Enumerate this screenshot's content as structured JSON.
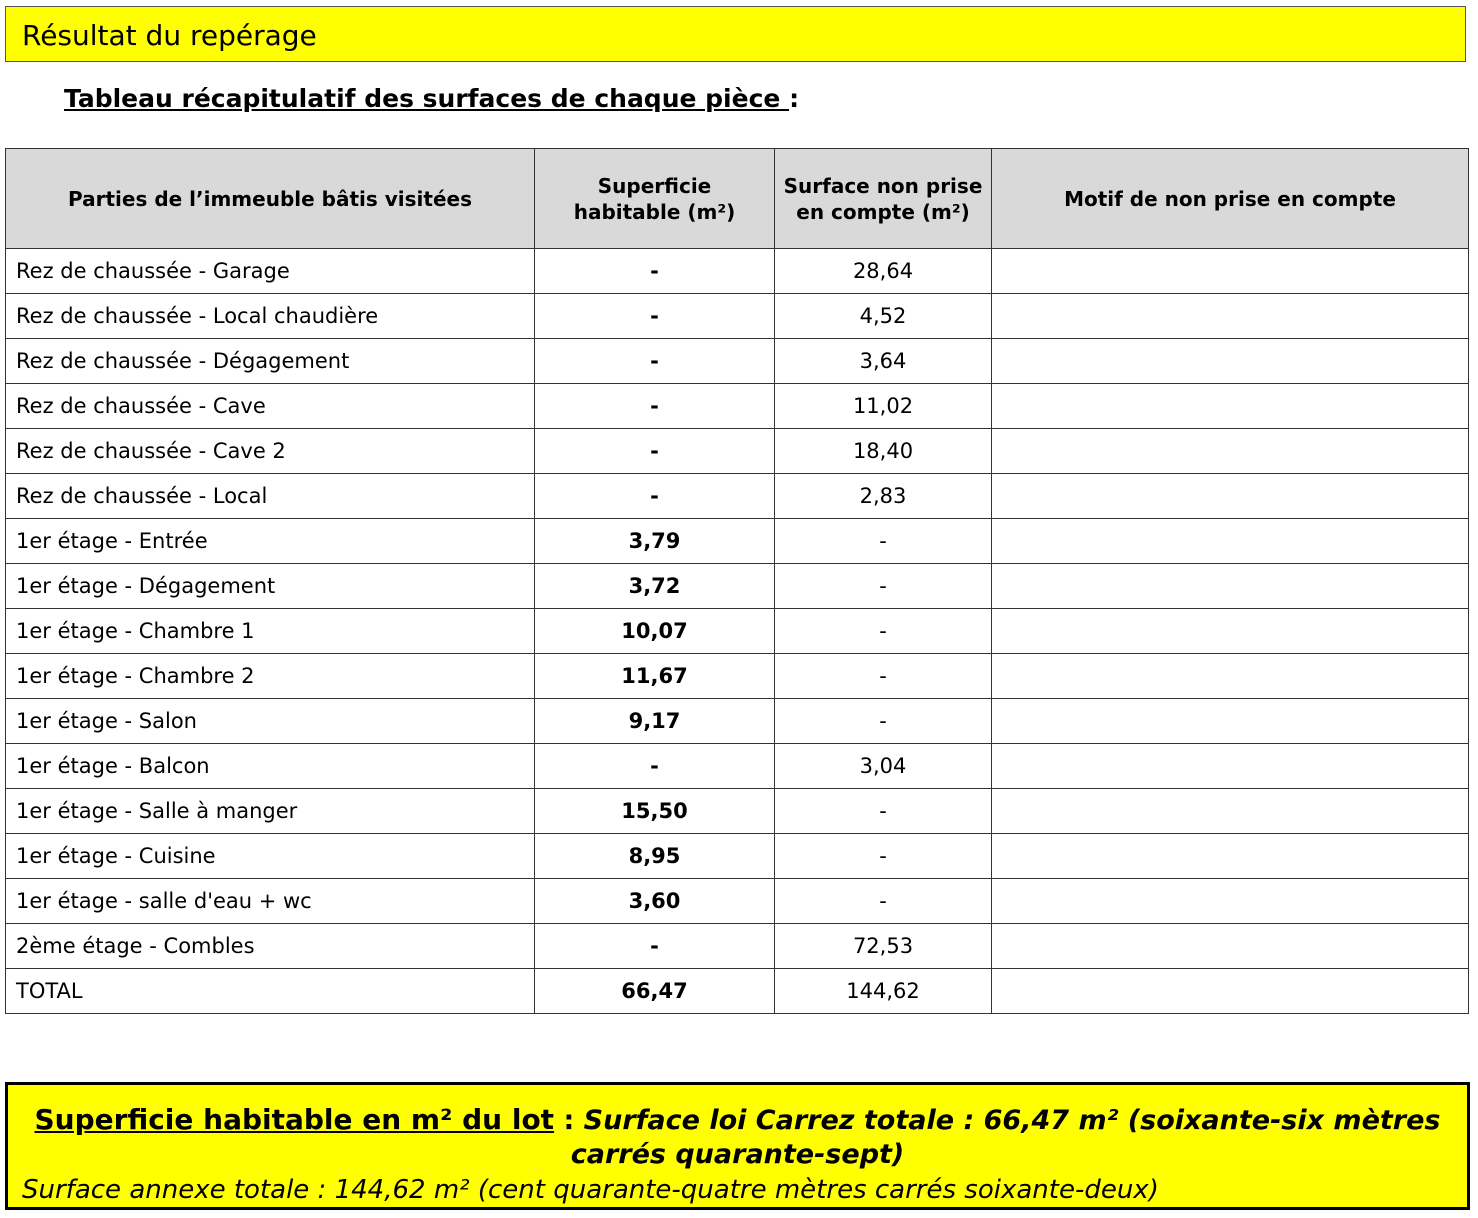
{
  "header": {
    "title": "Résultat du repérage"
  },
  "subtitle": {
    "text": "Tableau récapitulatif des surfaces de chaque pièce ",
    "colon": ":"
  },
  "table": {
    "columns": [
      "Parties de l’immeuble bâtis visitées",
      "Superficie habitable (m²)",
      "Surface non prise en compte (m²)",
      "Motif de non prise en compte"
    ],
    "rows": [
      [
        "Rez de chaussée - Garage",
        "-",
        "28,64",
        ""
      ],
      [
        "Rez de chaussée - Local chaudière",
        "-",
        "4,52",
        ""
      ],
      [
        "Rez de chaussée - Dégagement",
        "-",
        "3,64",
        ""
      ],
      [
        "Rez de chaussée - Cave",
        "-",
        "11,02",
        ""
      ],
      [
        "Rez de chaussée - Cave 2",
        "-",
        "18,40",
        ""
      ],
      [
        "Rez de chaussée - Local",
        "-",
        "2,83",
        ""
      ],
      [
        "1er étage - Entrée",
        "3,79",
        "-",
        ""
      ],
      [
        "1er étage - Dégagement",
        "3,72",
        "-",
        ""
      ],
      [
        "1er étage - Chambre 1",
        "10,07",
        "-",
        ""
      ],
      [
        "1er étage - Chambre 2",
        "11,67",
        "-",
        ""
      ],
      [
        "1er étage - Salon",
        "9,17",
        "-",
        ""
      ],
      [
        "1er étage - Balcon",
        "-",
        "3,04",
        ""
      ],
      [
        "1er étage - Salle à manger",
        "15,50",
        "-",
        ""
      ],
      [
        "1er étage - Cuisine",
        "8,95",
        "-",
        ""
      ],
      [
        "1er étage - salle d'eau + wc",
        "3,60",
        "-",
        ""
      ],
      [
        "2ème étage - Combles",
        "-",
        "72,53",
        ""
      ],
      [
        "TOTAL",
        "66,47",
        "144,62",
        ""
      ]
    ]
  },
  "summary": {
    "label": "Superficie habitable en m² du lot",
    "separator": " : ",
    "carrez": "Surface loi Carrez totale : 66,47 m² (soixante-six mètres carrés quarante-sept)",
    "annexe": "Surface annexe totale : 144,62 m² (cent quarante-quatre mètres carrés soixante-deux)"
  },
  "colors": {
    "highlight": "#ffff00",
    "header_bg": "#d9d9d9"
  }
}
